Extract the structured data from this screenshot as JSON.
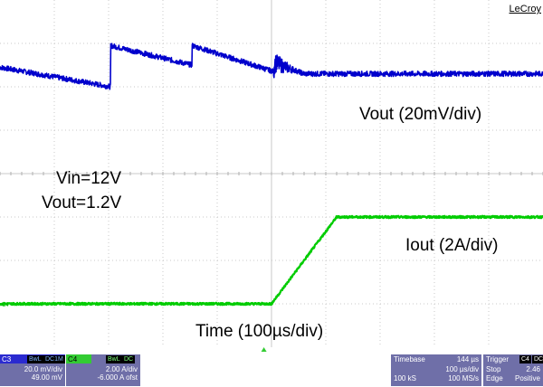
{
  "brand": "LeCroy",
  "annotations": {
    "vout_scale": "Vout (20mV/div)",
    "vin": "Vin=12V",
    "vout_set": "Vout=1.2V",
    "iout_scale": "Iout (2A/div)",
    "time_scale": "Time (100µs/div)"
  },
  "channels": [
    {
      "id": "C3",
      "tags": [
        "BwL",
        "DC1M"
      ],
      "scale": "20.0 mV/div",
      "offset": "49.00 mV",
      "color": "#0000cc"
    },
    {
      "id": "C4",
      "tags": [
        "BwL",
        "DC"
      ],
      "scale": "2.00 A/div",
      "offset": "-6.000 A ofst",
      "color": "#00cc00"
    }
  ],
  "timebase": {
    "label": "Timebase",
    "delay": "144 µs",
    "per_div": "100 µs/div",
    "samples": "100 kS",
    "rate": "100 MS/s"
  },
  "trigger": {
    "label": "Trigger",
    "source": "C4",
    "coupling": "DC",
    "mode": "Stop",
    "level": "2.46",
    "type": "Edge",
    "slope": "Positive"
  },
  "chart_data": {
    "type": "line",
    "x_unit": "µs",
    "xlim": [
      -500,
      500
    ],
    "x_grid_divs": 10,
    "y_grid_divs": 8,
    "grid": true,
    "series": [
      {
        "name": "Vout",
        "color": "#0000cc",
        "points_x": [
          -500,
          -296,
          -296,
          -146,
          -146,
          4,
          4,
          6,
          60,
          500
        ],
        "points_div": [
          2.45,
          2.0,
          2.95,
          2.5,
          2.95,
          2.35,
          2.3,
          2.55,
          2.3,
          2.3
        ]
      },
      {
        "name": "Iout",
        "color": "#00cc00",
        "points_x": [
          -500,
          0,
          120,
          500
        ],
        "points_div": [
          -3.0,
          -3.0,
          -1.0,
          -1.0
        ]
      }
    ],
    "markers": {
      "ch3_ground_label": "3",
      "ch4_ground_label": "C4"
    }
  }
}
